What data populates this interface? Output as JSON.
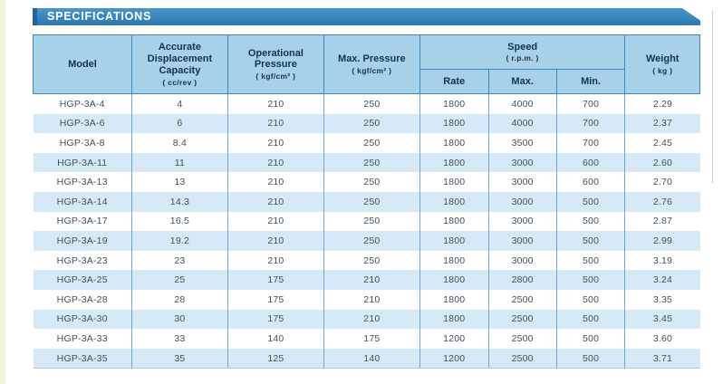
{
  "page": {
    "title_bar": "SPECIFICATIONS"
  },
  "colors": {
    "titlebar_top": "#4896cc",
    "titlebar_bottom": "#2e78ae",
    "titlebar_accent": "#2465a0",
    "header_bg": "#a7d1e8",
    "header_text": "#16324f",
    "border_dark": "#4186bc",
    "border_light": "#6ea8d2",
    "stripe": "#d6e9f6",
    "body_text": "#45505d",
    "edge_strip": "#f6f3dc"
  },
  "table": {
    "headers": {
      "model": "Model",
      "capacity": {
        "label": "Accurate Displacement Capacity",
        "unit": "( cc/rev )"
      },
      "operational_pressure": {
        "label": "Operational Pressure",
        "unit": "( kgf/cm² )"
      },
      "max_pressure": {
        "label": "Max. Pressure",
        "unit": "( kgf/cm² )"
      },
      "speed": {
        "label": "Speed",
        "unit": "( r.p.m. )",
        "sub_rate": "Rate",
        "sub_max": "Max.",
        "sub_min": "Min."
      },
      "weight": {
        "label": "Weight",
        "unit": "( kg )"
      }
    },
    "rows": [
      {
        "model": "HGP-3A-4",
        "capacity": "4",
        "operational_pressure": "210",
        "max_pressure": "250",
        "speed_rate": "1800",
        "speed_max": "4000",
        "speed_min": "700",
        "weight": "2.29"
      },
      {
        "model": "HGP-3A-6",
        "capacity": "6",
        "operational_pressure": "210",
        "max_pressure": "250",
        "speed_rate": "1800",
        "speed_max": "4000",
        "speed_min": "700",
        "weight": "2.37"
      },
      {
        "model": "HGP-3A-8",
        "capacity": "8.4",
        "operational_pressure": "210",
        "max_pressure": "250",
        "speed_rate": "1800",
        "speed_max": "3500",
        "speed_min": "700",
        "weight": "2.45"
      },
      {
        "model": "HGP-3A-11",
        "capacity": "11",
        "operational_pressure": "210",
        "max_pressure": "250",
        "speed_rate": "1800",
        "speed_max": "3000",
        "speed_min": "600",
        "weight": "2.60"
      },
      {
        "model": "HGP-3A-13",
        "capacity": "13",
        "operational_pressure": "210",
        "max_pressure": "250",
        "speed_rate": "1800",
        "speed_max": "3000",
        "speed_min": "600",
        "weight": "2.70"
      },
      {
        "model": "HGP-3A-14",
        "capacity": "14.3",
        "operational_pressure": "210",
        "max_pressure": "250",
        "speed_rate": "1800",
        "speed_max": "3000",
        "speed_min": "500",
        "weight": "2.76"
      },
      {
        "model": "HGP-3A-17",
        "capacity": "16.5",
        "operational_pressure": "210",
        "max_pressure": "250",
        "speed_rate": "1800",
        "speed_max": "3000",
        "speed_min": "500",
        "weight": "2.87"
      },
      {
        "model": "HGP-3A-19",
        "capacity": "19.2",
        "operational_pressure": "210",
        "max_pressure": "250",
        "speed_rate": "1800",
        "speed_max": "3000",
        "speed_min": "500",
        "weight": "2.99"
      },
      {
        "model": "HGP-3A-23",
        "capacity": "23",
        "operational_pressure": "210",
        "max_pressure": "250",
        "speed_rate": "1800",
        "speed_max": "3000",
        "speed_min": "500",
        "weight": "3.19"
      },
      {
        "model": "HGP-3A-25",
        "capacity": "25",
        "operational_pressure": "175",
        "max_pressure": "210",
        "speed_rate": "1800",
        "speed_max": "2800",
        "speed_min": "500",
        "weight": "3.24"
      },
      {
        "model": "HGP-3A-28",
        "capacity": "28",
        "operational_pressure": "175",
        "max_pressure": "210",
        "speed_rate": "1800",
        "speed_max": "2500",
        "speed_min": "500",
        "weight": "3.35"
      },
      {
        "model": "HGP-3A-30",
        "capacity": "30",
        "operational_pressure": "175",
        "max_pressure": "210",
        "speed_rate": "1800",
        "speed_max": "2500",
        "speed_min": "500",
        "weight": "3.45"
      },
      {
        "model": "HGP-3A-33",
        "capacity": "33",
        "operational_pressure": "140",
        "max_pressure": "175",
        "speed_rate": "1200",
        "speed_max": "2500",
        "speed_min": "500",
        "weight": "3.60"
      },
      {
        "model": "HGP-3A-35",
        "capacity": "35",
        "operational_pressure": "125",
        "max_pressure": "140",
        "speed_rate": "1200",
        "speed_max": "2500",
        "speed_min": "500",
        "weight": "3.71"
      }
    ]
  }
}
